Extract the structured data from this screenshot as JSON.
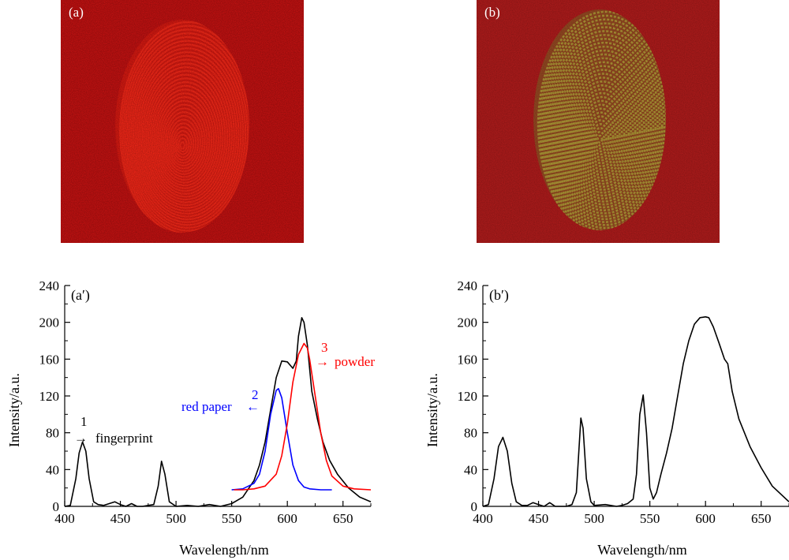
{
  "photos": [
    {
      "label": "(a)",
      "color": "#cc1212",
      "ridge_color": "#ff2a1a"
    },
    {
      "label": "(b)",
      "color": "#b51c1c",
      "ridge_color": "#b9a83a"
    }
  ],
  "chart_data": [
    {
      "type": "line",
      "panel_label": "(a′)",
      "xlabel": "Wavelength/nm",
      "ylabel": "Intensity/a.u.",
      "xlim": [
        400,
        675
      ],
      "ylim": [
        0,
        240
      ],
      "xticks": [
        400,
        450,
        500,
        550,
        600,
        650
      ],
      "yticks": [
        0,
        40,
        80,
        120,
        160,
        200,
        240
      ],
      "grid": false,
      "series": [
        {
          "color": "#000000",
          "x": [
            400,
            405,
            410,
            413,
            416,
            419,
            422,
            426,
            430,
            435,
            440,
            445,
            450,
            455,
            460,
            465,
            470,
            475,
            480,
            484,
            487,
            490,
            494,
            500,
            510,
            520,
            530,
            540,
            550,
            560,
            570,
            575,
            580,
            585,
            590,
            595,
            600,
            605,
            608,
            610,
            613,
            615,
            618,
            622,
            627,
            632,
            638,
            645,
            655,
            665,
            675
          ],
          "y": [
            0,
            1,
            30,
            58,
            70,
            60,
            30,
            5,
            2,
            1,
            3,
            5,
            2,
            0,
            3,
            0,
            0,
            1,
            2,
            22,
            49,
            35,
            5,
            0,
            1,
            0,
            2,
            0,
            3,
            10,
            28,
            45,
            70,
            105,
            140,
            158,
            157,
            150,
            158,
            185,
            205,
            200,
            175,
            125,
            95,
            70,
            50,
            35,
            20,
            10,
            5
          ]
        },
        {
          "color": "#0000ff",
          "x": [
            550,
            560,
            570,
            575,
            580,
            585,
            590,
            592,
            595,
            600,
            605,
            610,
            615,
            620,
            630,
            640
          ],
          "y": [
            18,
            19,
            25,
            35,
            60,
            100,
            126,
            128,
            118,
            80,
            45,
            28,
            21,
            19,
            18,
            18
          ]
        },
        {
          "color": "#ff0000",
          "x": [
            552,
            560,
            570,
            580,
            590,
            595,
            600,
            605,
            610,
            615,
            618,
            620,
            625,
            630,
            635,
            640,
            650,
            660,
            675
          ],
          "y": [
            18,
            18,
            19,
            22,
            35,
            55,
            90,
            135,
            165,
            177,
            172,
            160,
            120,
            80,
            50,
            33,
            22,
            19,
            18
          ]
        }
      ],
      "annotations": [
        {
          "number": "1",
          "text": "fingerprint",
          "arrow": "→",
          "color": "#000000"
        },
        {
          "number": "2",
          "text": "red paper",
          "arrow": "←",
          "color": "#0000ff"
        },
        {
          "number": "3",
          "text": "powder",
          "arrow": "→",
          "color": "#ff0000"
        }
      ]
    },
    {
      "type": "line",
      "panel_label": "(b′)",
      "xlabel": "Wavelength/nm",
      "ylabel": "Intensity/a.u.",
      "xlim": [
        400,
        675
      ],
      "ylim": [
        0,
        240
      ],
      "xticks": [
        400,
        450,
        500,
        550,
        600,
        650
      ],
      "yticks": [
        0,
        40,
        80,
        120,
        160,
        200,
        240
      ],
      "grid": false,
      "series": [
        {
          "color": "#000000",
          "x": [
            400,
            405,
            410,
            414,
            418,
            422,
            426,
            430,
            435,
            440,
            445,
            450,
            455,
            460,
            465,
            470,
            475,
            480,
            484,
            486,
            488,
            490,
            493,
            497,
            500,
            510,
            520,
            525,
            530,
            535,
            538,
            541,
            544,
            547,
            550,
            553,
            556,
            560,
            565,
            570,
            575,
            580,
            585,
            590,
            595,
            600,
            603,
            607,
            612,
            617,
            620,
            624,
            630,
            640,
            650,
            660,
            675
          ],
          "y": [
            0,
            2,
            30,
            65,
            75,
            60,
            25,
            5,
            1,
            1,
            4,
            2,
            0,
            4,
            0,
            0,
            0,
            2,
            15,
            55,
            96,
            85,
            30,
            5,
            1,
            2,
            0,
            1,
            3,
            8,
            35,
            100,
            121,
            80,
            20,
            8,
            15,
            35,
            58,
            85,
            120,
            155,
            180,
            198,
            205,
            206,
            205,
            195,
            178,
            160,
            155,
            125,
            95,
            65,
            42,
            22,
            5
          ]
        }
      ],
      "annotations": []
    }
  ]
}
